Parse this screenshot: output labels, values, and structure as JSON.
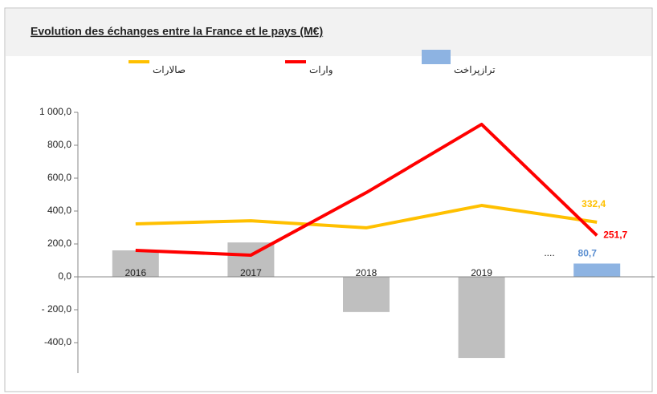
{
  "chart_data": {
    "type": "combo",
    "title": "Evolution des échanges entre la France et le pays (M€)",
    "categories": [
      "2016",
      "2017",
      "2018",
      "2019",
      null
    ],
    "series": [
      {
        "name": "صالارات",
        "type": "line",
        "color": "#ffc000",
        "values": [
          322,
          341,
          298,
          434,
          332.4
        ],
        "value_labels": [
          null,
          null,
          null,
          null,
          "332,4"
        ]
      },
      {
        "name": "وارات",
        "type": "line",
        "color": "#ff0000",
        "values": [
          161,
          132,
          512,
          927,
          251.7
        ],
        "value_labels": [
          null,
          null,
          null,
          null,
          "251,7"
        ]
      },
      {
        "name": "ترازپراخت",
        "type": "bar",
        "color": "#8db3e2",
        "point_colors": [
          "#bfbfbf",
          "#bfbfbf",
          "#bfbfbf",
          "#bfbfbf",
          "#8db3e2"
        ],
        "values": [
          161,
          209,
          -214,
          -493,
          80.7
        ],
        "value_labels": [
          null,
          null,
          null,
          null,
          "80,7"
        ]
      }
    ],
    "annotation": "....",
    "ylim": [
      -400,
      1000
    ],
    "yticks": [
      {
        "value": 1000,
        "label": "1 000,0"
      },
      {
        "value": 800,
        "label": "800,0"
      },
      {
        "value": 600,
        "label": "600,0"
      },
      {
        "value": 400,
        "label": "400,0"
      },
      {
        "value": 200,
        "label": "200,0"
      },
      {
        "value": 0,
        "label": "0,0"
      },
      {
        "value": -200,
        "label": "- 200,0"
      },
      {
        "value": -400,
        "label": "-400,0"
      }
    ]
  }
}
